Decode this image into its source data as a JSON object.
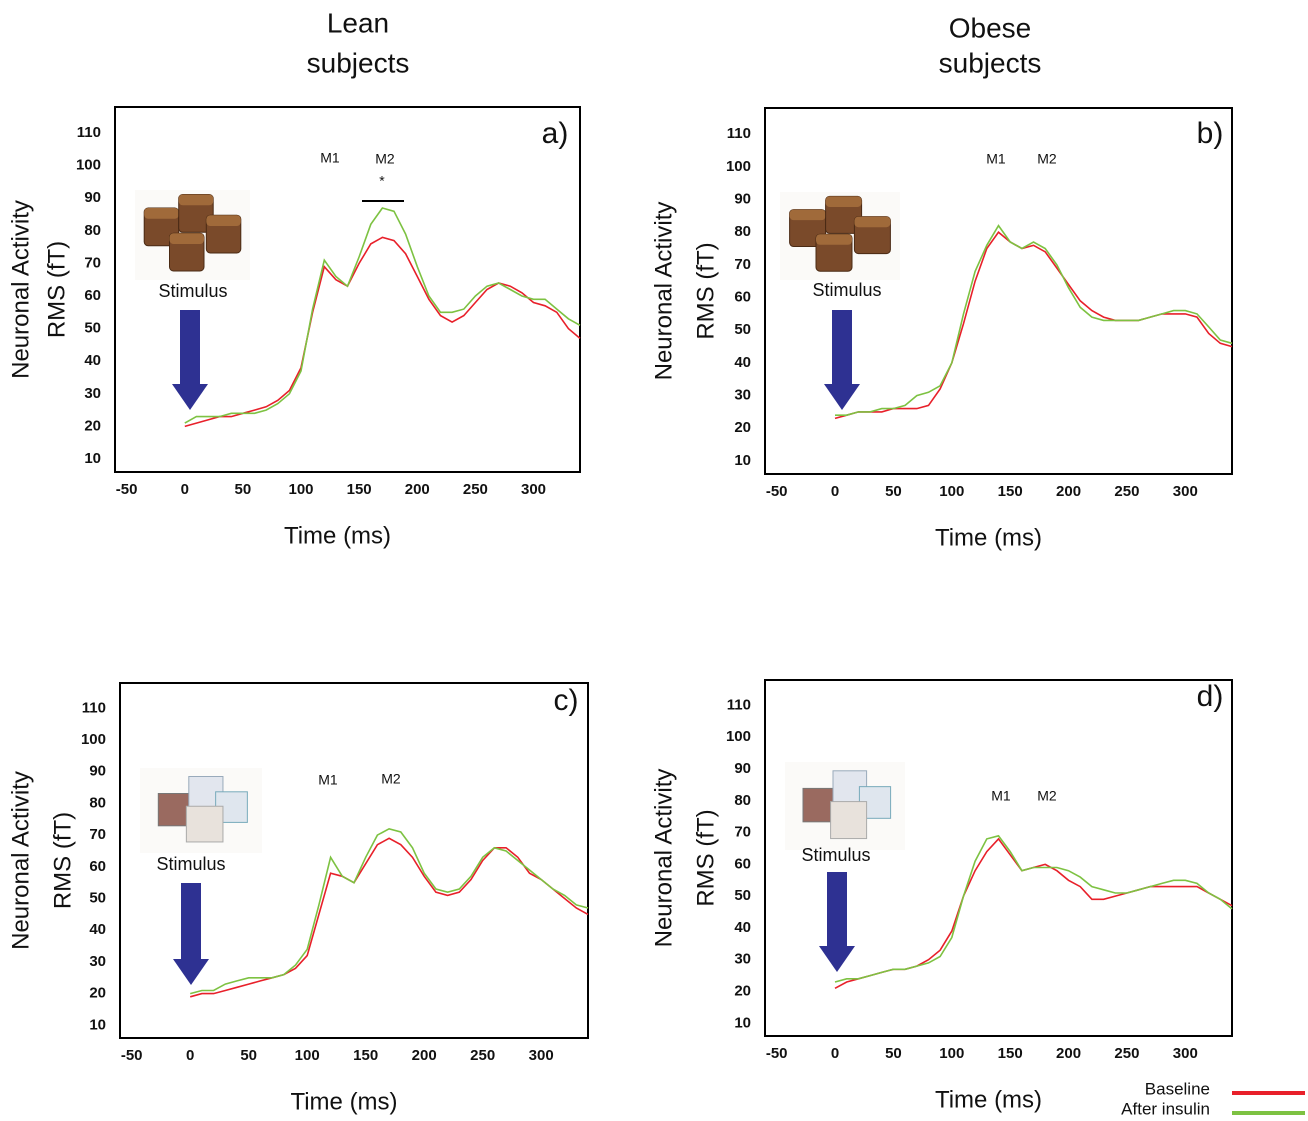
{
  "column_titles": [
    [
      "Lean",
      "subjects"
    ],
    [
      "Obese",
      "subjects"
    ]
  ],
  "chart_data": [
    {
      "type": "line",
      "panel_label": "a)",
      "y_label": [
        "Neuronal Activity",
        "RMS (fT)"
      ],
      "x_label": "Time (ms)",
      "stimulus_label": "Stimulus",
      "annotations": [
        "M1",
        "M2",
        "*"
      ],
      "xlim": [
        -60,
        340
      ],
      "ylim": [
        6,
        118
      ],
      "xticks": [
        -50,
        0,
        50,
        100,
        150,
        200,
        250,
        300
      ],
      "yticks": [
        10,
        20,
        30,
        40,
        50,
        60,
        70,
        80,
        90,
        100,
        110
      ],
      "x": [
        0,
        10,
        20,
        30,
        40,
        50,
        60,
        70,
        80,
        90,
        100,
        110,
        120,
        130,
        140,
        150,
        160,
        170,
        180,
        190,
        200,
        210,
        220,
        230,
        240,
        250,
        260,
        270,
        280,
        290,
        300,
        310,
        320,
        330,
        340
      ],
      "series": [
        {
          "color": "#e8202a",
          "values": [
            20,
            21,
            22,
            23,
            23,
            24,
            25,
            26,
            28,
            31,
            38,
            55,
            69,
            65,
            63,
            70,
            76,
            78,
            77,
            73,
            66,
            59,
            54,
            52,
            54,
            58,
            62,
            64,
            63,
            61,
            58,
            57,
            55,
            50,
            47
          ]
        },
        {
          "color": "#7dc242",
          "values": [
            21,
            23,
            23,
            23,
            24,
            24,
            24,
            25,
            27,
            30,
            37,
            56,
            71,
            66,
            63,
            72,
            82,
            87,
            86,
            79,
            69,
            60,
            55,
            55,
            56,
            60,
            63,
            64,
            62,
            60,
            59,
            59,
            56,
            53,
            51
          ]
        }
      ]
    },
    {
      "type": "line",
      "panel_label": "b)",
      "y_label": [
        "Neuronal Activity",
        "RMS (fT)"
      ],
      "x_label": "Time (ms)",
      "stimulus_label": "Stimulus",
      "annotations": [
        "M1",
        "M2"
      ],
      "xlim": [
        -60,
        340
      ],
      "ylim": [
        6,
        118
      ],
      "xticks": [
        -50,
        0,
        50,
        100,
        150,
        200,
        250,
        300
      ],
      "yticks": [
        10,
        20,
        30,
        40,
        50,
        60,
        70,
        80,
        90,
        100,
        110
      ],
      "x": [
        0,
        10,
        20,
        30,
        40,
        50,
        60,
        70,
        80,
        90,
        100,
        110,
        120,
        130,
        140,
        150,
        160,
        170,
        180,
        190,
        200,
        210,
        220,
        230,
        240,
        250,
        260,
        270,
        280,
        290,
        300,
        310,
        320,
        330,
        340
      ],
      "series": [
        {
          "color": "#e8202a",
          "values": [
            23,
            24,
            25,
            25,
            25,
            26,
            26,
            26,
            27,
            32,
            40,
            52,
            65,
            75,
            80,
            77,
            75,
            76,
            74,
            69,
            64,
            59,
            56,
            54,
            53,
            53,
            53,
            54,
            55,
            55,
            55,
            54,
            49,
            46,
            45
          ]
        },
        {
          "color": "#7dc242",
          "values": [
            24,
            24,
            25,
            25,
            26,
            26,
            27,
            30,
            31,
            33,
            40,
            55,
            68,
            76,
            82,
            77,
            75,
            77,
            75,
            70,
            63,
            57,
            54,
            53,
            53,
            53,
            53,
            54,
            55,
            56,
            56,
            55,
            51,
            47,
            46
          ]
        }
      ]
    },
    {
      "type": "line",
      "panel_label": "c)",
      "y_label": [
        "Neuronal Activity",
        "RMS (fT)"
      ],
      "x_label": "Time (ms)",
      "stimulus_label": "Stimulus",
      "annotations": [
        "M1",
        "M2"
      ],
      "xlim": [
        -60,
        340
      ],
      "ylim": [
        6,
        118
      ],
      "xticks": [
        -50,
        0,
        50,
        100,
        150,
        200,
        250,
        300
      ],
      "yticks": [
        10,
        20,
        30,
        40,
        50,
        60,
        70,
        80,
        90,
        100,
        110
      ],
      "x": [
        0,
        10,
        20,
        30,
        40,
        50,
        60,
        70,
        80,
        90,
        100,
        110,
        120,
        130,
        140,
        150,
        160,
        170,
        180,
        190,
        200,
        210,
        220,
        230,
        240,
        250,
        260,
        270,
        280,
        290,
        300,
        310,
        320,
        330,
        340
      ],
      "series": [
        {
          "color": "#e8202a",
          "values": [
            19,
            20,
            20,
            21,
            22,
            23,
            24,
            25,
            26,
            28,
            32,
            45,
            58,
            57,
            55,
            61,
            67,
            69,
            67,
            63,
            57,
            52,
            51,
            52,
            56,
            62,
            66,
            66,
            63,
            58,
            56,
            53,
            50,
            47,
            45
          ]
        },
        {
          "color": "#7dc242",
          "values": [
            20,
            21,
            21,
            23,
            24,
            25,
            25,
            25,
            26,
            29,
            34,
            48,
            63,
            57,
            55,
            63,
            70,
            72,
            71,
            66,
            58,
            53,
            52,
            53,
            57,
            63,
            66,
            65,
            62,
            59,
            56,
            53,
            51,
            48,
            47
          ]
        }
      ]
    },
    {
      "type": "line",
      "panel_label": "d)",
      "y_label": [
        "Neuronal Activity",
        "RMS (fT)"
      ],
      "x_label": "Time (ms)",
      "stimulus_label": "Stimulus",
      "annotations": [
        "M1",
        "M2"
      ],
      "xlim": [
        -60,
        340
      ],
      "ylim": [
        6,
        118
      ],
      "xticks": [
        -50,
        0,
        50,
        100,
        150,
        200,
        250,
        300
      ],
      "yticks": [
        10,
        20,
        30,
        40,
        50,
        60,
        70,
        80,
        90,
        100,
        110
      ],
      "x": [
        0,
        10,
        20,
        30,
        40,
        50,
        60,
        70,
        80,
        90,
        100,
        110,
        120,
        130,
        140,
        150,
        160,
        170,
        180,
        190,
        200,
        210,
        220,
        230,
        240,
        250,
        260,
        270,
        280,
        290,
        300,
        310,
        320,
        330,
        340
      ],
      "series": [
        {
          "name": "Baseline",
          "color": "#e8202a",
          "values": [
            21,
            23,
            24,
            25,
            26,
            27,
            27,
            28,
            30,
            33,
            39,
            50,
            58,
            64,
            68,
            63,
            58,
            59,
            60,
            58,
            55,
            53,
            49,
            49,
            50,
            51,
            52,
            53,
            53,
            53,
            53,
            53,
            51,
            49,
            47
          ]
        },
        {
          "name": "After insulin",
          "color": "#7dc242",
          "values": [
            23,
            24,
            24,
            25,
            26,
            27,
            27,
            28,
            29,
            31,
            37,
            50,
            61,
            68,
            69,
            64,
            58,
            59,
            59,
            59,
            58,
            56,
            53,
            52,
            51,
            51,
            52,
            53,
            54,
            55,
            55,
            54,
            51,
            49,
            46
          ]
        }
      ]
    }
  ]
}
